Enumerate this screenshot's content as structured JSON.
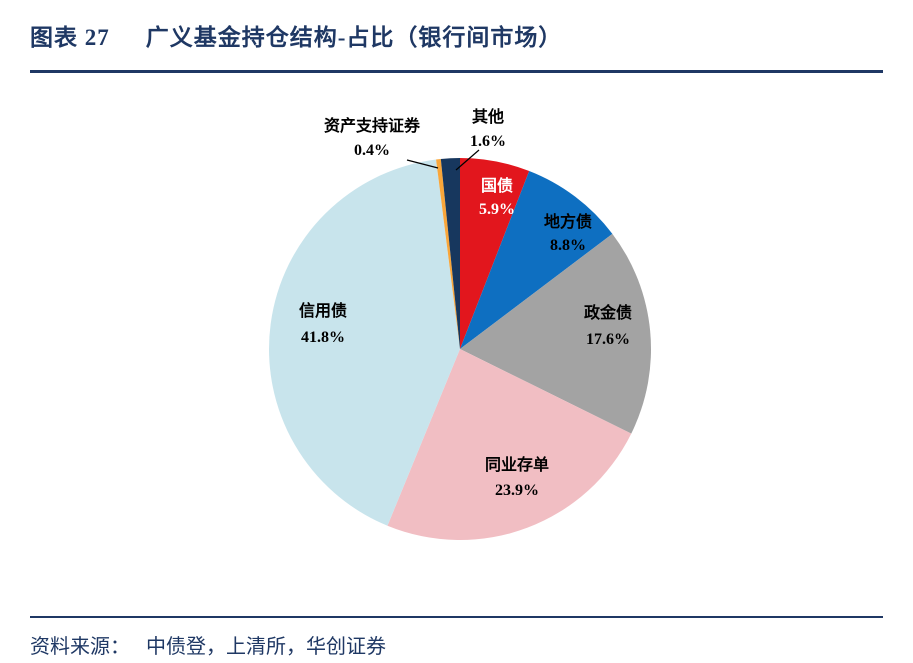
{
  "header": {
    "figure_label": "图表 27",
    "title": "广义基金持仓结构-占比（银行间市场）"
  },
  "footer": {
    "source_label": "资料来源：",
    "source_text": "中债登，上清所，华创证券"
  },
  "colors": {
    "accent_navy": "#1f3864",
    "leader_line": "#000000"
  },
  "chart_data": {
    "type": "pie",
    "title": "广义基金持仓结构-占比（银行间市场）",
    "legend": "none",
    "start_angle_deg": 0,
    "direction": "clockwise",
    "slices": [
      {
        "id": "treasury-bond",
        "name": "国债",
        "value": 5.9,
        "percent_label": "5.9%",
        "color": "#e2161d",
        "label_color": "#ffffff"
      },
      {
        "id": "local-gov-bond",
        "name": "地方债",
        "value": 8.8,
        "percent_label": "8.8%",
        "color": "#0e6fc1",
        "label_color": "#000000"
      },
      {
        "id": "policy-bank-bond",
        "name": "政金债",
        "value": 17.6,
        "percent_label": "17.6%",
        "color": "#a3a3a3",
        "label_color": "#000000"
      },
      {
        "id": "ncd",
        "name": "同业存单",
        "value": 23.9,
        "percent_label": "23.9%",
        "color": "#f1bec3",
        "label_color": "#000000"
      },
      {
        "id": "credit-bond",
        "name": "信用债",
        "value": 41.8,
        "percent_label": "41.8%",
        "color": "#c8e4ec",
        "label_color": "#000000"
      },
      {
        "id": "abs",
        "name": "资产支持证券",
        "value": 0.4,
        "percent_label": "0.4%",
        "color": "#f9a63a",
        "label_color": "#000000"
      },
      {
        "id": "other",
        "name": "其他",
        "value": 1.6,
        "percent_label": "1.6%",
        "color": "#17375e",
        "label_color": "#000000"
      }
    ]
  }
}
